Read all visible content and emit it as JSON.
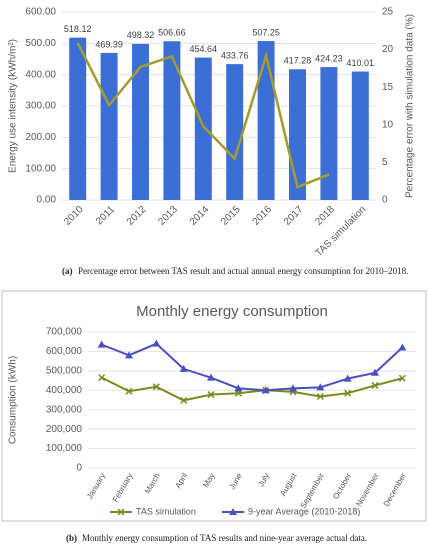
{
  "chart_data": [
    {
      "type": "bar",
      "categories": [
        "2010",
        "2011",
        "2012",
        "2013",
        "2014",
        "2015",
        "2016",
        "2017",
        "2018",
        "TAS simulation"
      ],
      "ylabel": "Energy use intensity (kWh/m²)",
      "y2label": "Percentage error with simulation data (%)",
      "series": [
        {
          "type": "bar",
          "color": "#3b6fd6",
          "values": [
            518.12,
            469.39,
            498.32,
            506.66,
            454.64,
            433.76,
            507.25,
            417.28,
            424.23,
            410.01
          ]
        },
        {
          "type": "line",
          "axis": "y2",
          "color": "#a59b2f",
          "values": [
            20.9,
            12.6,
            17.7,
            19.1,
            9.8,
            5.5,
            19.2,
            1.7,
            3.4,
            null
          ]
        }
      ],
      "ylim": [
        0,
        600
      ],
      "yticks": [
        {
          "value": 0,
          "label": "0.00"
        },
        {
          "value": 100,
          "label": "100.00"
        },
        {
          "value": 200,
          "label": "200.00"
        },
        {
          "value": 300,
          "label": "300.00"
        },
        {
          "value": 400,
          "label": "400.00"
        },
        {
          "value": 500,
          "label": "500.00"
        },
        {
          "value": 600,
          "label": "600.00"
        }
      ],
      "y2lim": [
        0,
        25
      ],
      "y2ticks": [
        0,
        5,
        10,
        15,
        20,
        25
      ],
      "caption_label": "(a)",
      "caption": "Percentage error between TAS result and actual annual energy consumption for 2010–2018."
    },
    {
      "type": "line",
      "title": "Monthly energy consumption",
      "categories": [
        "January",
        "February",
        "March",
        "April",
        "May",
        "June",
        "July",
        "August",
        "September",
        "October",
        "November",
        "December"
      ],
      "ylabel": "Consumption (kWh)",
      "series": [
        {
          "name": "TAS simulation",
          "color": "#7a8a1e",
          "marker": "x",
          "values": [
            465000,
            395000,
            418000,
            348000,
            378000,
            385000,
            400000,
            392000,
            368000,
            385000,
            425000,
            462000
          ]
        },
        {
          "name": "9-year Average  (2010-2018)",
          "color": "#4b4fc4",
          "marker": "triangle",
          "values": [
            635000,
            580000,
            640000,
            510000,
            465000,
            410000,
            400000,
            410000,
            415000,
            460000,
            490000,
            620000
          ]
        }
      ],
      "ylim": [
        0,
        700000
      ],
      "yticks": [
        0,
        {
          "value": 100000,
          "label": "100,000"
        },
        {
          "value": 200000,
          "label": "200,000"
        },
        {
          "value": 300000,
          "label": "300,000"
        },
        {
          "value": 400000,
          "label": "400,000"
        },
        {
          "value": 500000,
          "label": "500,000"
        },
        {
          "value": 600000,
          "label": "600,000"
        },
        {
          "value": 700000,
          "label": "700,000"
        }
      ],
      "legend": "bottom",
      "caption_label": "(b)",
      "caption": "Monthly energy consumption of TAS results and nine-year average actual data."
    }
  ]
}
